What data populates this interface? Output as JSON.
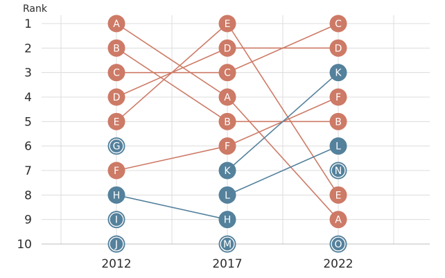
{
  "chart_data": {
    "type": "line",
    "title": "",
    "ylabel": "Rank",
    "xlabel": "",
    "x": [
      "2012",
      "2017",
      "2022"
    ],
    "ylim": [
      1,
      10
    ],
    "y_inverted": true,
    "grid": true,
    "colors": {
      "red": "#cd7a66",
      "blue": "#54819c"
    },
    "series": [
      {
        "name": "A",
        "group": "red",
        "ranks": [
          1,
          4,
          9
        ]
      },
      {
        "name": "B",
        "group": "red",
        "ranks": [
          2,
          5,
          5
        ]
      },
      {
        "name": "C",
        "group": "red",
        "ranks": [
          3,
          3,
          1
        ]
      },
      {
        "name": "D",
        "group": "red",
        "ranks": [
          4,
          2,
          2
        ]
      },
      {
        "name": "E",
        "group": "red",
        "ranks": [
          5,
          1,
          8
        ]
      },
      {
        "name": "F",
        "group": "red",
        "ranks": [
          7,
          6,
          4
        ]
      },
      {
        "name": "G",
        "group": "blue",
        "ranks": [
          6,
          null,
          null
        ]
      },
      {
        "name": "H",
        "group": "blue",
        "ranks": [
          8,
          9,
          null
        ]
      },
      {
        "name": "I",
        "group": "blue",
        "ranks": [
          9,
          null,
          null
        ]
      },
      {
        "name": "J",
        "group": "blue",
        "ranks": [
          10,
          null,
          null
        ]
      },
      {
        "name": "K",
        "group": "blue",
        "ranks": [
          null,
          7,
          3
        ]
      },
      {
        "name": "L",
        "group": "blue",
        "ranks": [
          null,
          8,
          6
        ]
      },
      {
        "name": "M",
        "group": "blue",
        "ranks": [
          null,
          10,
          null
        ]
      },
      {
        "name": "N",
        "group": "blue",
        "ranks": [
          null,
          null,
          7
        ]
      },
      {
        "name": "O",
        "group": "blue",
        "ranks": [
          null,
          null,
          10
        ]
      }
    ],
    "ring_markers": [
      "G",
      "I",
      "J",
      "M",
      "N",
      "O"
    ]
  }
}
